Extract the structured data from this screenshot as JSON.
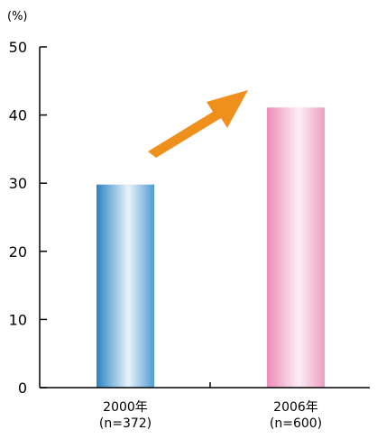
{
  "chart_data": {
    "type": "bar",
    "unit_label": "(%)",
    "categories": [
      "2000年",
      "2006年"
    ],
    "category_sublabels": [
      "(n=372)",
      "(n=600)"
    ],
    "values": [
      29.8,
      41.1
    ],
    "ylim": [
      0,
      50
    ],
    "yticks": [
      "0",
      "10",
      "20",
      "30",
      "40",
      "50"
    ],
    "grid": false,
    "annotation": "upward arrow from first bar toward second bar",
    "series": [
      {
        "values": [
          29.8,
          41.1
        ],
        "colors": [
          "#2b84c2",
          "#ec8cb8"
        ]
      }
    ],
    "arrow_color": "#f0901c"
  }
}
